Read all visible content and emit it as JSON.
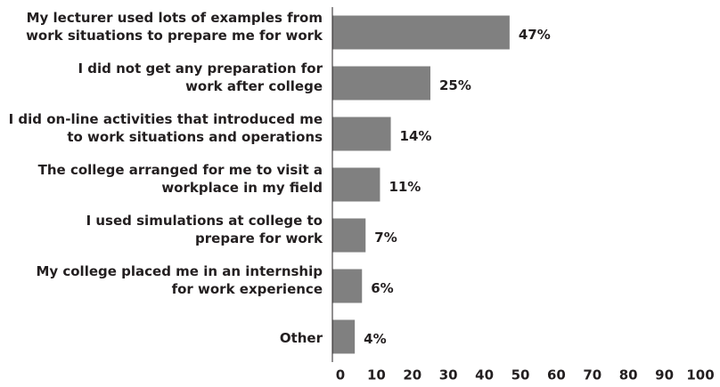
{
  "chart_data": {
    "type": "bar",
    "orientation": "horizontal",
    "categories": [
      [
        "My lecturer used lots of examples from",
        "work situations to prepare me for work"
      ],
      [
        "I did not get any preparation for",
        "work after college"
      ],
      [
        "I did on-line activities that introduced me",
        "to work situations and operations"
      ],
      [
        "The college arranged for me to visit a",
        "workplace in my field"
      ],
      [
        "I used simulations at college to",
        "prepare for work"
      ],
      [
        "My college placed me in an internship",
        "for work experience"
      ],
      [
        "Other"
      ]
    ],
    "values": [
      47,
      25,
      14,
      11,
      7,
      6,
      4
    ],
    "value_labels": [
      "47%",
      "25%",
      "14%",
      "11%",
      "7%",
      "6%",
      "4%"
    ],
    "color": "#808080",
    "xlim": [
      0,
      100
    ],
    "xticks": [
      0,
      10,
      20,
      30,
      40,
      50,
      60,
      70,
      80,
      90,
      100
    ]
  }
}
